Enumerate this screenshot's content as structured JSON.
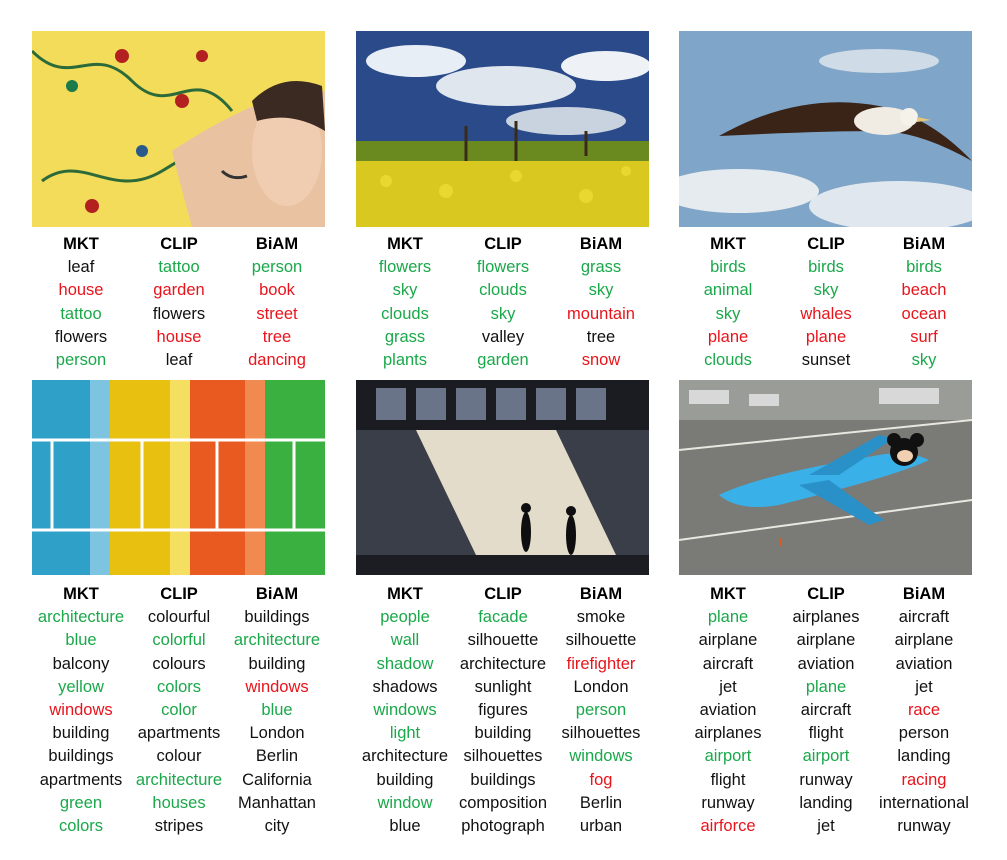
{
  "colors": {
    "correct": "#1aa84a",
    "wrong": "#e8141c",
    "neutral": "#111111"
  },
  "panels": [
    {
      "image": "man-with-tattoo-floral-wallpaper",
      "columns": [
        {
          "header": "MKT",
          "words": [
            [
              "leaf",
              "b"
            ],
            [
              "house",
              "r"
            ],
            [
              "tattoo",
              "g"
            ],
            [
              "flowers",
              "b"
            ],
            [
              "person",
              "g"
            ]
          ]
        },
        {
          "header": "CLIP",
          "words": [
            [
              "tattoo",
              "g"
            ],
            [
              "garden",
              "r"
            ],
            [
              "flowers",
              "b"
            ],
            [
              "house",
              "r"
            ],
            [
              "leaf",
              "b"
            ]
          ]
        },
        {
          "header": "BiAM",
          "words": [
            [
              "person",
              "g"
            ],
            [
              "book",
              "r"
            ],
            [
              "street",
              "r"
            ],
            [
              "tree",
              "r"
            ],
            [
              "dancing",
              "r"
            ]
          ]
        }
      ]
    },
    {
      "image": "yellow-flower-field-cloudy-sky",
      "columns": [
        {
          "header": "MKT",
          "words": [
            [
              "flowers",
              "g"
            ],
            [
              "sky",
              "g"
            ],
            [
              "clouds",
              "g"
            ],
            [
              "grass",
              "g"
            ],
            [
              "plants",
              "g"
            ]
          ]
        },
        {
          "header": "CLIP",
          "words": [
            [
              "flowers",
              "g"
            ],
            [
              "clouds",
              "g"
            ],
            [
              "sky",
              "g"
            ],
            [
              "valley",
              "b"
            ],
            [
              "garden",
              "g"
            ]
          ]
        },
        {
          "header": "BiAM",
          "words": [
            [
              "grass",
              "g"
            ],
            [
              "sky",
              "g"
            ],
            [
              "mountain",
              "r"
            ],
            [
              "tree",
              "b"
            ],
            [
              "snow",
              "r"
            ]
          ]
        }
      ]
    },
    {
      "image": "seabird-flying-blue-sky",
      "columns": [
        {
          "header": "MKT",
          "words": [
            [
              "birds",
              "g"
            ],
            [
              "animal",
              "g"
            ],
            [
              "sky",
              "g"
            ],
            [
              "plane",
              "r"
            ],
            [
              "clouds",
              "g"
            ]
          ]
        },
        {
          "header": "CLIP",
          "words": [
            [
              "birds",
              "g"
            ],
            [
              "sky",
              "g"
            ],
            [
              "whales",
              "r"
            ],
            [
              "plane",
              "r"
            ],
            [
              "sunset",
              "b"
            ]
          ]
        },
        {
          "header": "BiAM",
          "words": [
            [
              "birds",
              "g"
            ],
            [
              "beach",
              "r"
            ],
            [
              "ocean",
              "r"
            ],
            [
              "surf",
              "r"
            ],
            [
              "sky",
              "g"
            ]
          ]
        }
      ]
    },
    {
      "image": "colorful-apartment-balconies",
      "columns": [
        {
          "header": "MKT",
          "words": [
            [
              "architecture",
              "g"
            ],
            [
              "blue",
              "g"
            ],
            [
              "balcony",
              "b"
            ],
            [
              "yellow",
              "g"
            ],
            [
              "windows",
              "r"
            ],
            [
              "building",
              "b"
            ],
            [
              "buildings",
              "b"
            ],
            [
              "apartments",
              "b"
            ],
            [
              "green",
              "g"
            ],
            [
              "colors",
              "g"
            ]
          ]
        },
        {
          "header": "CLIP",
          "words": [
            [
              "colourful",
              "b"
            ],
            [
              "colorful",
              "g"
            ],
            [
              "colours",
              "b"
            ],
            [
              "colors",
              "g"
            ],
            [
              "color",
              "g"
            ],
            [
              "apartments",
              "b"
            ],
            [
              "colour",
              "b"
            ],
            [
              "architecture",
              "g"
            ],
            [
              "houses",
              "g"
            ],
            [
              "stripes",
              "b"
            ]
          ]
        },
        {
          "header": "BiAM",
          "words": [
            [
              "buildings",
              "b"
            ],
            [
              "architecture",
              "g"
            ],
            [
              "building",
              "b"
            ],
            [
              "windows",
              "r"
            ],
            [
              "blue",
              "g"
            ],
            [
              "London",
              "b"
            ],
            [
              "Berlin",
              "b"
            ],
            [
              "California",
              "b"
            ],
            [
              "Manhattan",
              "b"
            ],
            [
              "city",
              "b"
            ]
          ]
        }
      ]
    },
    {
      "image": "people-silhouettes-wall-shadow",
      "columns": [
        {
          "header": "MKT",
          "words": [
            [
              "people",
              "g"
            ],
            [
              "wall",
              "g"
            ],
            [
              "shadow",
              "g"
            ],
            [
              "shadows",
              "b"
            ],
            [
              "windows",
              "g"
            ],
            [
              "light",
              "g"
            ],
            [
              "architecture",
              "b"
            ],
            [
              "building",
              "b"
            ],
            [
              "window",
              "g"
            ],
            [
              "blue",
              "b"
            ]
          ]
        },
        {
          "header": "CLIP",
          "words": [
            [
              "facade",
              "g"
            ],
            [
              "silhouette",
              "b"
            ],
            [
              "architecture",
              "b"
            ],
            [
              "sunlight",
              "b"
            ],
            [
              "figures",
              "b"
            ],
            [
              "building",
              "b"
            ],
            [
              "silhouettes",
              "b"
            ],
            [
              "buildings",
              "b"
            ],
            [
              "composition",
              "b"
            ],
            [
              "photograph",
              "b"
            ]
          ]
        },
        {
          "header": "BiAM",
          "words": [
            [
              "smoke",
              "b"
            ],
            [
              "silhouette",
              "b"
            ],
            [
              "firefighter",
              "r"
            ],
            [
              "London",
              "b"
            ],
            [
              "person",
              "g"
            ],
            [
              "silhouettes",
              "b"
            ],
            [
              "windows",
              "g"
            ],
            [
              "fog",
              "r"
            ],
            [
              "Berlin",
              "b"
            ],
            [
              "urban",
              "b"
            ]
          ]
        }
      ]
    },
    {
      "image": "painted-airplane-on-runway",
      "columns": [
        {
          "header": "MKT",
          "words": [
            [
              "plane",
              "g"
            ],
            [
              "airplane",
              "b"
            ],
            [
              "aircraft",
              "b"
            ],
            [
              "jet",
              "b"
            ],
            [
              "aviation",
              "b"
            ],
            [
              "airplanes",
              "b"
            ],
            [
              "airport",
              "g"
            ],
            [
              "flight",
              "b"
            ],
            [
              "runway",
              "b"
            ],
            [
              "airforce",
              "r"
            ]
          ]
        },
        {
          "header": "CLIP",
          "words": [
            [
              "airplanes",
              "b"
            ],
            [
              "airplane",
              "b"
            ],
            [
              "aviation",
              "b"
            ],
            [
              "plane",
              "g"
            ],
            [
              "aircraft",
              "b"
            ],
            [
              "flight",
              "b"
            ],
            [
              "airport",
              "g"
            ],
            [
              "runway",
              "b"
            ],
            [
              "landing",
              "b"
            ],
            [
              "jet",
              "b"
            ]
          ]
        },
        {
          "header": "BiAM",
          "words": [
            [
              "aircraft",
              "b"
            ],
            [
              "airplane",
              "b"
            ],
            [
              "aviation",
              "b"
            ],
            [
              "jet",
              "b"
            ],
            [
              "race",
              "r"
            ],
            [
              "person",
              "b"
            ],
            [
              "landing",
              "b"
            ],
            [
              "racing",
              "r"
            ],
            [
              "international",
              "b"
            ],
            [
              "runway",
              "b"
            ]
          ]
        }
      ]
    }
  ]
}
